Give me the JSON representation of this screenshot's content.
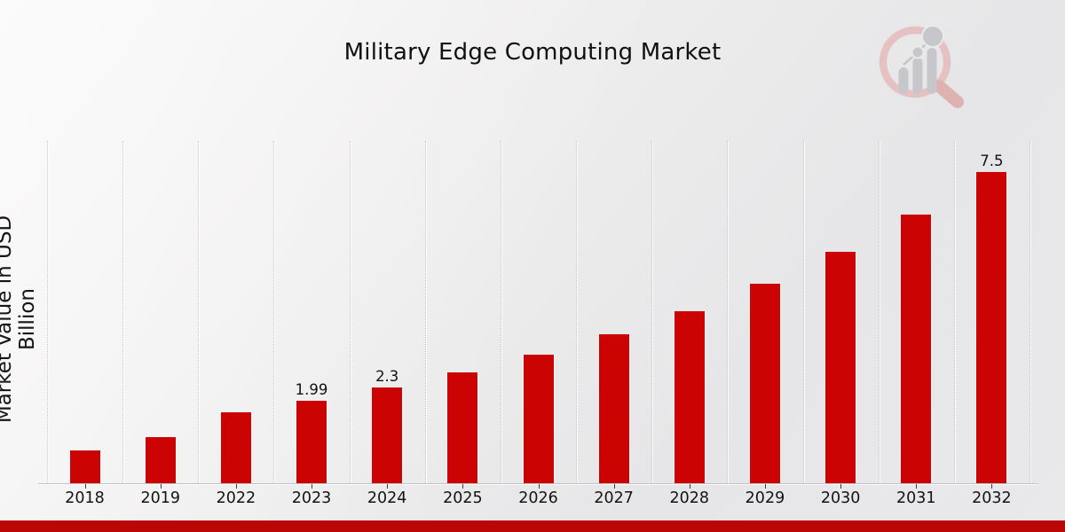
{
  "chart_data": {
    "type": "bar",
    "title": "Military Edge Computing Market",
    "ylabel": "Market Value in USD Billion",
    "xlabel": "",
    "categories": [
      "2018",
      "2019",
      "2022",
      "2023",
      "2024",
      "2025",
      "2026",
      "2027",
      "2028",
      "2029",
      "2030",
      "2031",
      "2032"
    ],
    "values": [
      0.79,
      1.11,
      1.71,
      1.99,
      2.3,
      2.67,
      3.09,
      3.58,
      4.15,
      4.81,
      5.58,
      6.47,
      7.5
    ],
    "value_labels": [
      "",
      "",
      "",
      "1.99",
      "2.3",
      "",
      "",
      "",
      "",
      "",
      "",
      "",
      "7.5"
    ],
    "ylim": [
      0,
      8.24
    ],
    "grid": "vertical-dotted",
    "legend": "none",
    "bar_color": "#cb0302",
    "accent_bar_color": "#bb0606",
    "watermark_icon": "magnifier-bar-chart-logo"
  }
}
